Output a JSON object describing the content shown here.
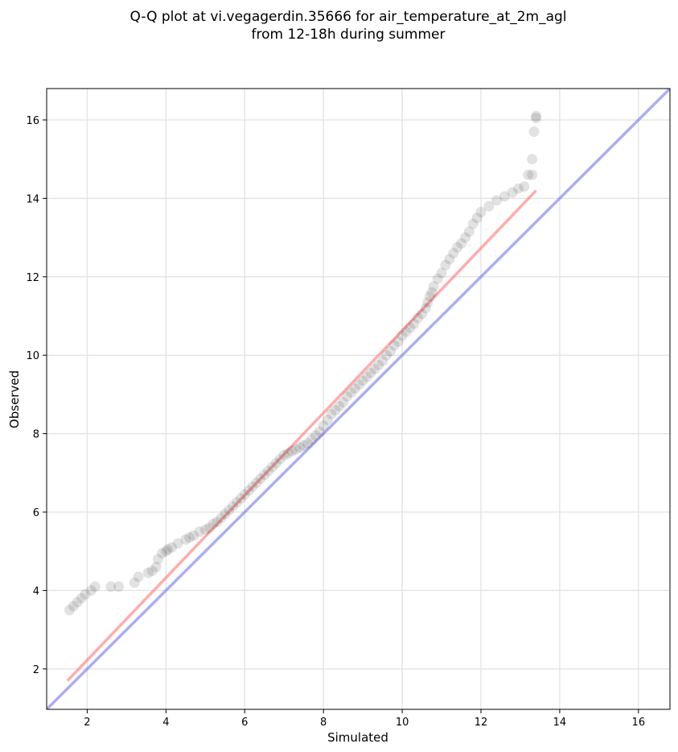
{
  "chart_data": {
    "type": "scatter",
    "title": "Q-Q plot at vi.vegagerdin.35666 for air_temperature_at_2m_agl",
    "subtitle": "from 12-18h during summer",
    "xlabel": "Simulated",
    "ylabel": "Observed",
    "xlim": [
      0.97,
      16.8
    ],
    "ylim": [
      0.97,
      16.8
    ],
    "xticks": [
      2,
      4,
      6,
      8,
      10,
      12,
      14,
      16
    ],
    "yticks": [
      2,
      4,
      6,
      8,
      10,
      12,
      14,
      16
    ],
    "grid": true,
    "colors": {
      "points": "#333333",
      "fit_line": "#ff7777",
      "identity_line": "#7777ee",
      "grid": "#e5e5e5"
    },
    "series": [
      {
        "kind": "quantiles",
        "x": [
          1.55,
          1.65,
          1.75,
          1.85,
          1.95,
          2.1,
          2.2,
          2.6,
          2.8,
          3.2,
          3.3,
          3.55,
          3.65,
          3.75,
          3.8,
          3.9,
          4.0,
          4.05,
          4.15,
          4.3,
          4.5,
          4.6,
          4.7,
          4.85,
          5.0,
          5.1,
          5.2,
          5.3,
          5.4,
          5.5,
          5.6,
          5.7,
          5.8,
          5.9,
          6.0,
          6.1,
          6.2,
          6.3,
          6.4,
          6.5,
          6.6,
          6.7,
          6.8,
          6.9,
          7.0,
          7.1,
          7.2,
          7.3,
          7.4,
          7.5,
          7.6,
          7.7,
          7.8,
          7.9,
          8.0,
          8.1,
          8.2,
          8.3,
          8.4,
          8.5,
          8.6,
          8.7,
          8.8,
          8.9,
          9.0,
          9.1,
          9.2,
          9.3,
          9.4,
          9.5,
          9.6,
          9.7,
          9.8,
          9.9,
          10.0,
          10.1,
          10.2,
          10.3,
          10.4,
          10.5,
          10.6,
          10.65,
          10.7,
          10.75,
          10.8,
          10.9,
          11.0,
          11.1,
          11.2,
          11.3,
          11.4,
          11.5,
          11.6,
          11.7,
          11.8,
          11.9,
          12.0,
          12.2,
          12.4,
          12.6,
          12.8,
          12.95,
          13.1,
          13.2,
          13.3,
          13.3,
          13.35,
          13.4,
          13.4
        ],
        "y": [
          3.5,
          3.6,
          3.7,
          3.8,
          3.9,
          4.0,
          4.1,
          4.1,
          4.1,
          4.2,
          4.35,
          4.45,
          4.5,
          4.6,
          4.8,
          4.95,
          5.0,
          5.05,
          5.1,
          5.2,
          5.3,
          5.35,
          5.4,
          5.5,
          5.55,
          5.6,
          5.7,
          5.75,
          5.85,
          5.95,
          6.05,
          6.15,
          6.25,
          6.35,
          6.45,
          6.55,
          6.65,
          6.75,
          6.85,
          6.95,
          7.05,
          7.15,
          7.25,
          7.35,
          7.45,
          7.5,
          7.55,
          7.6,
          7.65,
          7.7,
          7.75,
          7.85,
          7.95,
          8.05,
          8.2,
          8.35,
          8.5,
          8.6,
          8.7,
          8.8,
          8.95,
          9.05,
          9.15,
          9.25,
          9.35,
          9.45,
          9.55,
          9.65,
          9.75,
          9.85,
          10.0,
          10.1,
          10.25,
          10.35,
          10.5,
          10.6,
          10.7,
          10.8,
          10.95,
          11.05,
          11.2,
          11.35,
          11.5,
          11.6,
          11.75,
          11.95,
          12.1,
          12.3,
          12.45,
          12.6,
          12.75,
          12.85,
          13.0,
          13.15,
          13.35,
          13.5,
          13.65,
          13.8,
          13.95,
          14.05,
          14.15,
          14.25,
          14.3,
          14.6,
          14.6,
          15.0,
          15.7,
          16.05,
          16.1
        ]
      }
    ],
    "fit_line": {
      "x": [
        1.5,
        13.4
      ],
      "y": [
        1.7,
        14.2
      ]
    },
    "identity_line": {
      "x": [
        0.97,
        16.8
      ],
      "y": [
        0.97,
        16.8
      ]
    }
  }
}
